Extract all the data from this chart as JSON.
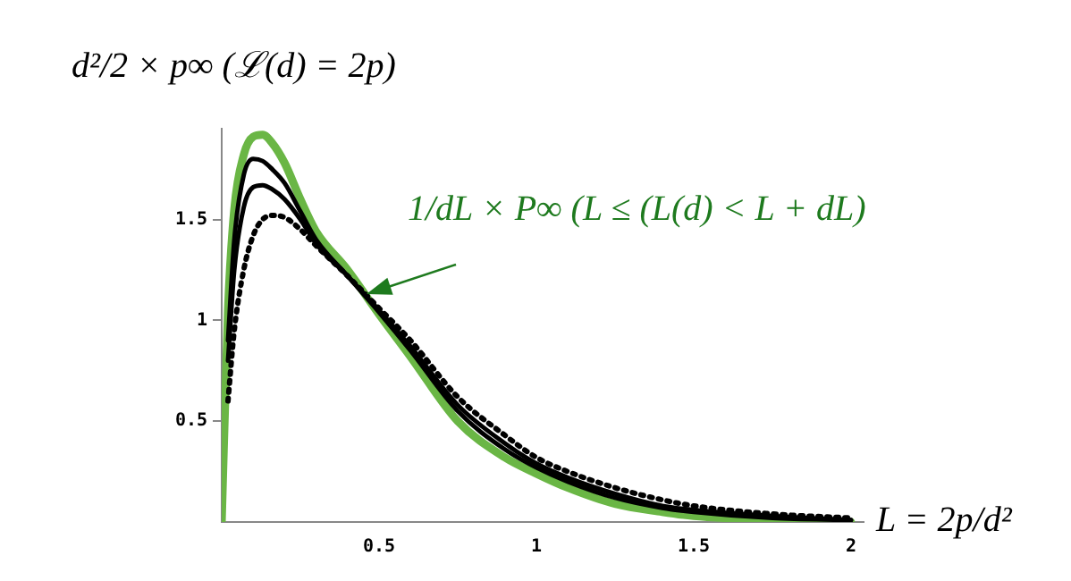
{
  "chart_data": {
    "type": "line",
    "ylabel": "d²/2 × p∞ (ℒ(d) = 2p)",
    "xlabel": "L = 2p/d²",
    "x": [
      0,
      0.02,
      0.04,
      0.07,
      0.1,
      0.13,
      0.16,
      0.2,
      0.25,
      0.3,
      0.4,
      0.5,
      0.6,
      0.75,
      0.9,
      1,
      1.1,
      1.25,
      1.4,
      1.5,
      1.75,
      2
    ],
    "series": [
      {
        "color": "#000000",
        "line_style": "dotted",
        "values": [
          null,
          0.6,
          0.95,
          1.25,
          1.42,
          1.5,
          1.52,
          1.51,
          1.45,
          1.37,
          1.22,
          1.06,
          0.9,
          0.62,
          0.43,
          0.32,
          0.25,
          0.17,
          0.11,
          0.08,
          0.04,
          0.02
        ]
      },
      {
        "color": "#000000",
        "line_style": "solid",
        "values": [
          null,
          0.8,
          1.25,
          1.56,
          1.66,
          1.67,
          1.65,
          1.6,
          1.5,
          1.38,
          1.22,
          1.05,
          0.87,
          0.58,
          0.39,
          0.29,
          0.22,
          0.14,
          0.08,
          0.06,
          0.03,
          0.01
        ]
      },
      {
        "color": "#000000",
        "line_style": "solid",
        "values": [
          null,
          0.9,
          1.4,
          1.72,
          1.8,
          1.79,
          1.75,
          1.68,
          1.54,
          1.4,
          1.22,
          1.04,
          0.85,
          0.55,
          0.36,
          0.27,
          0.2,
          0.12,
          0.07,
          0.05,
          0.02,
          0.01
        ]
      },
      {
        "color": "#6ab645",
        "line_style": "solid",
        "values": [
          0,
          1.05,
          1.55,
          1.82,
          1.91,
          1.92,
          1.88,
          1.78,
          1.6,
          1.44,
          1.25,
          1.03,
          0.82,
          0.5,
          0.32,
          0.24,
          0.17,
          0.09,
          0.05,
          0.03,
          0.01,
          0
        ]
      }
    ],
    "xlim": [
      0,
      2.04
    ],
    "xticks": [
      0.5,
      1,
      1.5,
      2
    ],
    "ylim": [
      0,
      1.95
    ],
    "yticks": [
      0.5,
      1,
      1.5
    ],
    "grid": false,
    "legend": false,
    "marker": "none",
    "annotations": [
      {
        "text": "1/dL × P∞ (L ≤ (L(d) < L + dL)",
        "x": 0.46,
        "y": 1.13
      }
    ]
  }
}
